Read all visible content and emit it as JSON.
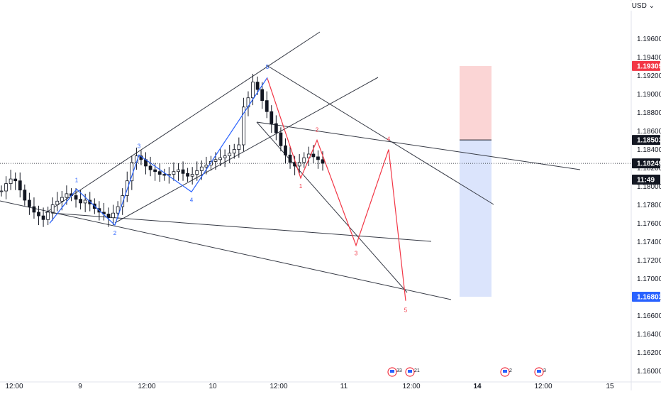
{
  "currency": "USD",
  "chart_data": {
    "type": "line",
    "title": "",
    "ylim": [
      1.1588,
      1.2002
    ],
    "y_ticks": [
      "1.19600",
      "1.19400",
      "1.19200",
      "1.19000",
      "1.18800",
      "1.18600",
      "1.18400",
      "1.18200",
      "1.18000",
      "1.17800",
      "1.17600",
      "1.17400",
      "1.17200",
      "1.17000",
      "1.16800",
      "1.16600",
      "1.16400",
      "1.16200",
      "1.16000"
    ],
    "x_ticks": [
      "12:00",
      "9",
      "12:00",
      "10",
      "12:00",
      "11",
      "12:00",
      "14",
      "12:00",
      "15"
    ],
    "price_tags": [
      {
        "label": "1.19305",
        "value": 1.19305,
        "color": "#f23645"
      },
      {
        "label": "1.18503",
        "value": 1.18503,
        "color": "#131722"
      },
      {
        "label": "1.18249",
        "value": 1.18249,
        "color": "#131722"
      },
      {
        "label": "11:49",
        "value": 1.18073,
        "color": "#131722"
      },
      {
        "label": "1.16803",
        "value": 1.16803,
        "color": "#2962ff"
      }
    ],
    "current_price": 1.18249,
    "position_tool": {
      "entry": 1.18503,
      "target": 1.19305,
      "stop": 1.16803,
      "profit_color": "#fbd5d5",
      "loss_color": "#dbe4fc"
    },
    "price_series": [
      1.1795,
      1.1803,
      1.1808,
      1.1806,
      1.1796,
      1.1785,
      1.1778,
      1.1772,
      1.1768,
      1.1764,
      1.1772,
      1.178,
      1.1784,
      1.1788,
      1.1792,
      1.179,
      1.1786,
      1.1782,
      1.1785,
      1.1781,
      1.1776,
      1.1772,
      1.177,
      1.1766,
      1.1771,
      1.1778,
      1.179,
      1.1806,
      1.1826,
      1.1833,
      1.1829,
      1.1822,
      1.1818,
      1.1816,
      1.1813,
      1.1812,
      1.1813,
      1.1816,
      1.1818,
      1.1814,
      1.1811,
      1.1813,
      1.1817,
      1.1821,
      1.1823,
      1.1827,
      1.1829,
      1.1831,
      1.1833,
      1.1836,
      1.184,
      1.1845,
      1.1886,
      1.1896,
      1.1913,
      1.1905,
      1.1893,
      1.1881,
      1.1868,
      1.1858,
      1.1844,
      1.1834,
      1.1826,
      1.1822,
      1.1826,
      1.1831,
      1.1835,
      1.1832,
      1.1829,
      1.1825
    ],
    "series": [
      {
        "name": "",
        "color": "#2962ff",
        "values": [
          1.176,
          1.1797,
          1.1758,
          1.1834,
          1.1794,
          1.1918
        ],
        "labels": [
          "",
          "1",
          "2",
          "3",
          "4",
          "5"
        ]
      },
      {
        "name": "",
        "color": "#f23645",
        "values": [
          1.1917,
          1.1809,
          1.185,
          1.1736,
          1.184,
          1.1676
        ],
        "labels": [
          "",
          "1",
          "2",
          "3",
          "4",
          "5"
        ]
      }
    ],
    "events": [
      {
        "label": "33",
        "icon": "flag-icon"
      },
      {
        "label": "21",
        "icon": "flag-icon"
      },
      {
        "label": "2",
        "icon": "flag-icon"
      },
      {
        "label": "3",
        "icon": "flag-icon"
      }
    ],
    "grid": false
  }
}
